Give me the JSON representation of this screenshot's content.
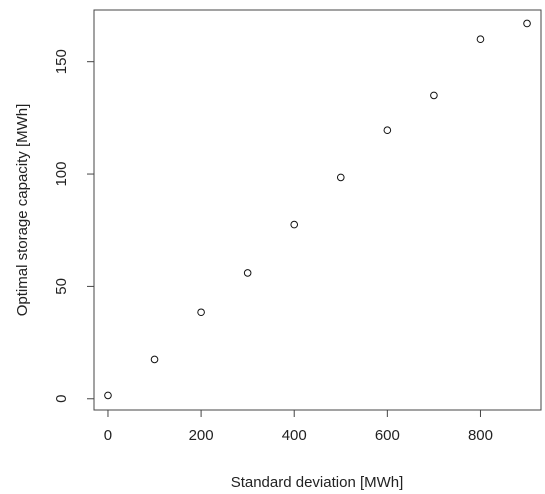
{
  "chart_data": {
    "type": "scatter",
    "title": "",
    "xlabel": "Standard deviation [MWh]",
    "ylabel": "Optimal storage capacity [MWh]",
    "x": [
      0,
      100,
      200,
      300,
      400,
      500,
      600,
      700,
      800,
      900
    ],
    "y": [
      1.5,
      17.5,
      38.5,
      56,
      77.5,
      98.5,
      119.5,
      135,
      160,
      167
    ],
    "xlim": [
      -30,
      930
    ],
    "ylim": [
      -5,
      173
    ],
    "xticks": [
      0,
      200,
      400,
      600,
      800
    ],
    "yticks": [
      0,
      50,
      100,
      150
    ],
    "xtick_labels": [
      "0",
      "200",
      "400",
      "600",
      "800"
    ],
    "ytick_labels": [
      "0",
      "50",
      "100",
      "150"
    ],
    "marker": "open-circle",
    "grid": false,
    "legend": "none",
    "colors": {
      "marker": "#111111",
      "axis": "#444444"
    }
  }
}
